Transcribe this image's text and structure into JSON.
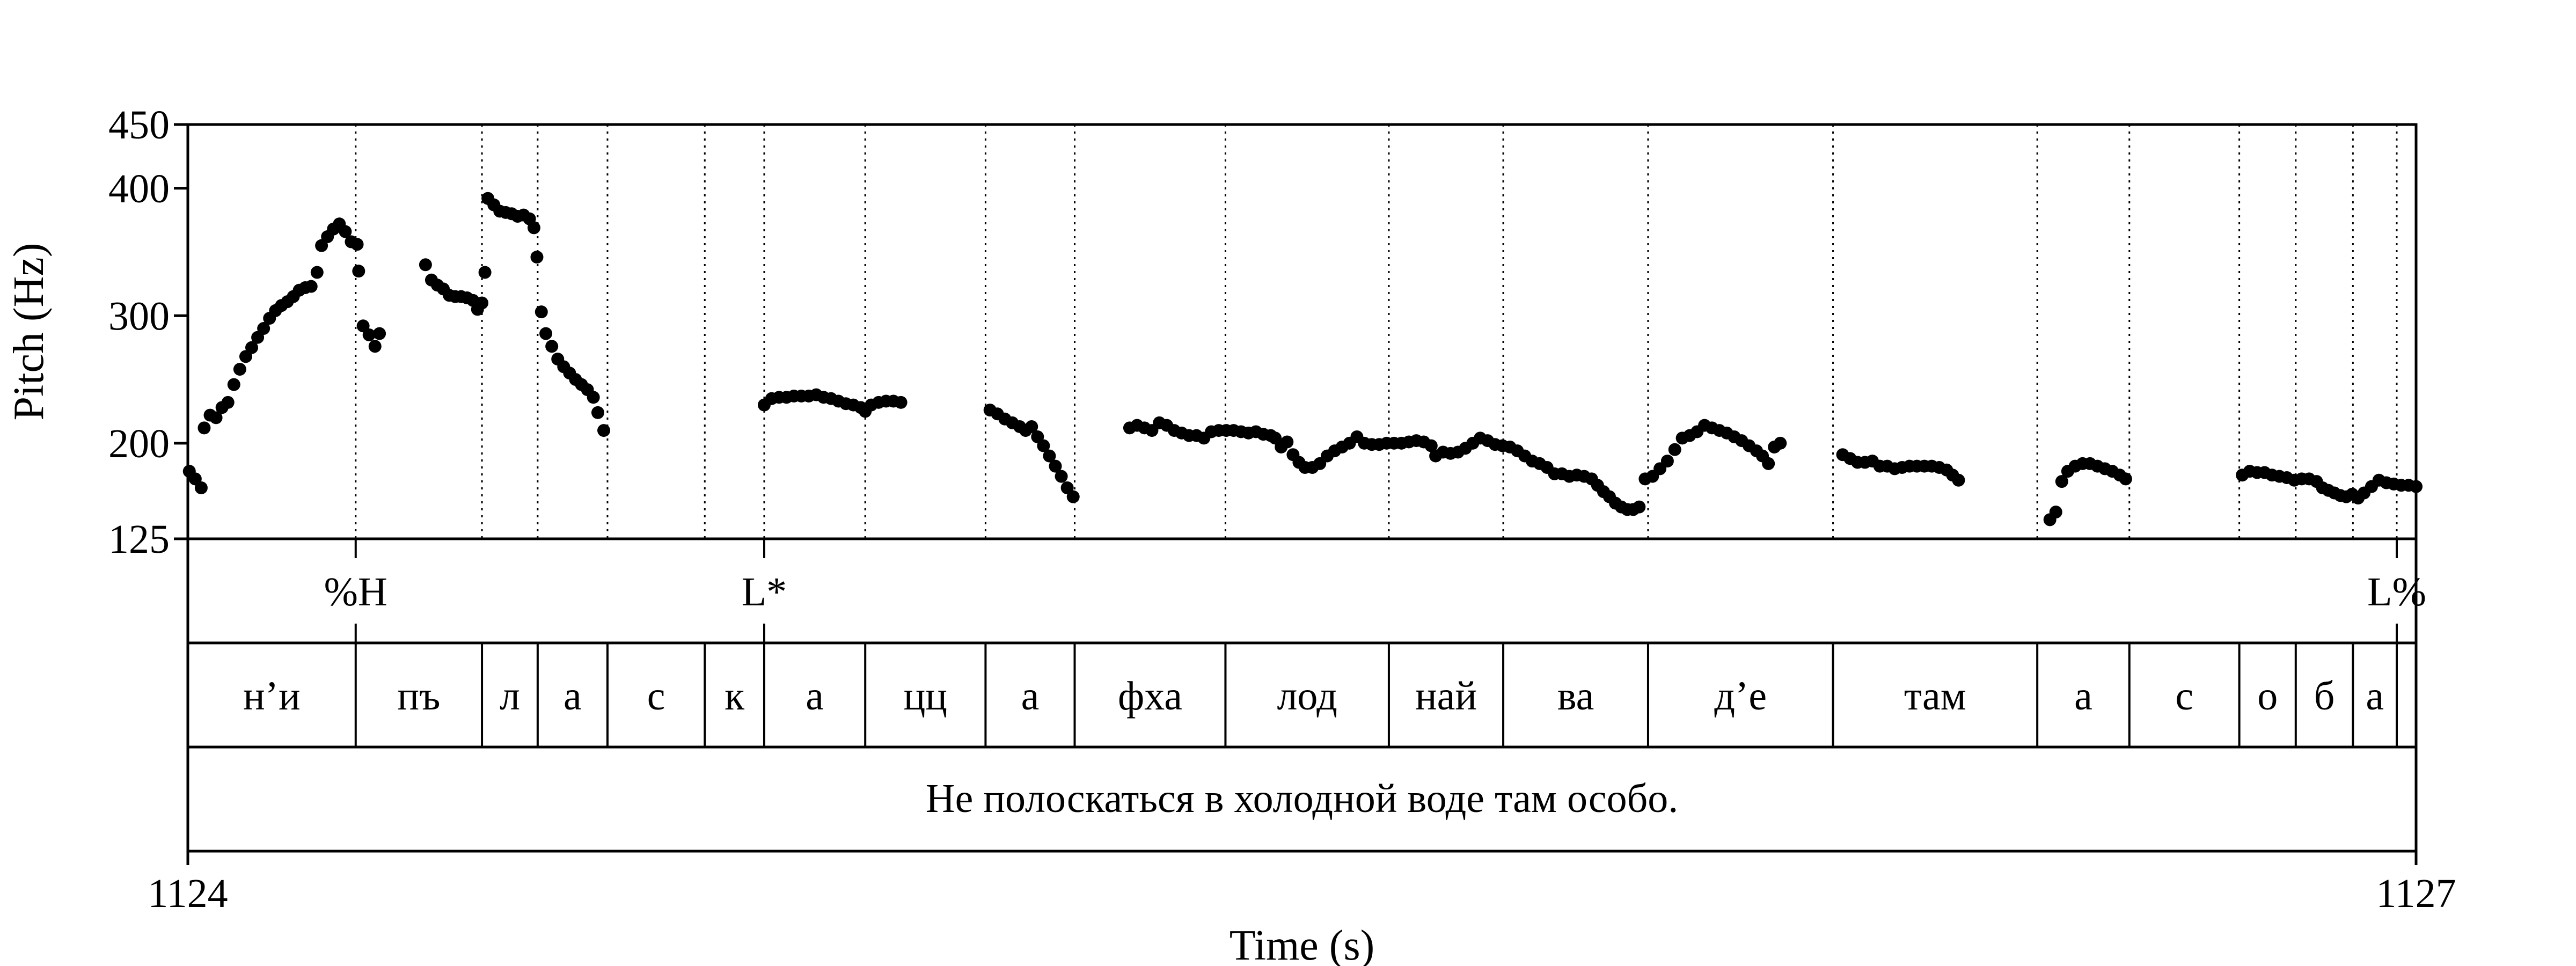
{
  "chart_data": {
    "type": "scatter",
    "title": "",
    "xlabel": "Time (s)",
    "ylabel": "Pitch (Hz)",
    "xlim": [
      1124,
      1127
    ],
    "ylim": [
      125,
      450
    ],
    "xticks": [
      "1124",
      "1127"
    ],
    "yticks": [
      125,
      200,
      300,
      400,
      450
    ],
    "ytick_labels": [
      "125",
      "200",
      "300",
      "400",
      "450"
    ],
    "y_scale": "linear",
    "grid": "vertical dotted lines at interval boundaries",
    "marker_color": "#000000",
    "tones": [
      {
        "label": "%H",
        "time": 1124.226
      },
      {
        "label": "L*",
        "time": 1124.776
      },
      {
        "label": "L%",
        "time": 1126.974
      }
    ],
    "syllable_boundaries": [
      1124,
      1124.226,
      1124.396,
      1124.471,
      1124.565,
      1124.696,
      1124.776,
      1124.912,
      1125.074,
      1125.194,
      1125.397,
      1125.617,
      1125.771,
      1125.966,
      1126.215,
      1126.49,
      1126.614,
      1126.762,
      1126.838,
      1126.915,
      1126.974,
      1127
    ],
    "syllables": [
      "н’и",
      "пъ",
      "л",
      "а",
      "с",
      "к",
      "а",
      "цц",
      "а",
      "фха",
      "лод",
      "най",
      "ва",
      "д’е",
      "там",
      "а",
      "с",
      "о",
      "б",
      "а"
    ],
    "sentence": "Не полоскаться в холодной воде там особо.",
    "series": [
      {
        "points": [
          [
            1124.002,
            178
          ],
          [
            1124.01,
            172
          ],
          [
            1124.018,
            165
          ],
          [
            1124.022,
            212
          ],
          [
            1124.03,
            222
          ],
          [
            1124.038,
            220
          ],
          [
            1124.046,
            228
          ],
          [
            1124.054,
            232
          ],
          [
            1124.062,
            246
          ],
          [
            1124.07,
            258
          ],
          [
            1124.078,
            268
          ],
          [
            1124.086,
            275
          ],
          [
            1124.094,
            283
          ],
          [
            1124.102,
            290
          ],
          [
            1124.11,
            298
          ],
          [
            1124.118,
            304
          ],
          [
            1124.126,
            308
          ],
          [
            1124.134,
            311
          ],
          [
            1124.142,
            315
          ],
          [
            1124.15,
            320
          ],
          [
            1124.158,
            322
          ],
          [
            1124.166,
            323
          ],
          [
            1124.174,
            334
          ],
          [
            1124.18,
            355
          ],
          [
            1124.188,
            362
          ],
          [
            1124.196,
            368
          ],
          [
            1124.204,
            372
          ],
          [
            1124.212,
            366
          ],
          [
            1124.22,
            358
          ],
          [
            1124.228,
            356
          ],
          [
            1124.23,
            335
          ],
          [
            1124.236,
            292
          ],
          [
            1124.244,
            285
          ],
          [
            1124.252,
            276
          ],
          [
            1124.258,
            286
          ],
          [
            1124.32,
            340
          ],
          [
            1124.328,
            328
          ],
          [
            1124.336,
            324
          ],
          [
            1124.344,
            321
          ],
          [
            1124.352,
            316
          ],
          [
            1124.36,
            315
          ],
          [
            1124.368,
            315
          ],
          [
            1124.376,
            314
          ],
          [
            1124.384,
            312
          ],
          [
            1124.39,
            305
          ],
          [
            1124.396,
            310
          ],
          [
            1124.4,
            334
          ],
          [
            1124.404,
            392
          ],
          [
            1124.412,
            387
          ],
          [
            1124.42,
            382
          ],
          [
            1124.428,
            381
          ],
          [
            1124.436,
            380
          ],
          [
            1124.444,
            378
          ],
          [
            1124.452,
            379
          ],
          [
            1124.46,
            376
          ],
          [
            1124.466,
            369
          ],
          [
            1124.47,
            346
          ],
          [
            1124.476,
            303
          ],
          [
            1124.482,
            286
          ],
          [
            1124.49,
            276
          ],
          [
            1124.498,
            266
          ],
          [
            1124.506,
            260
          ],
          [
            1124.514,
            255
          ],
          [
            1124.522,
            250
          ],
          [
            1124.53,
            246
          ],
          [
            1124.538,
            242
          ],
          [
            1124.546,
            236
          ],
          [
            1124.552,
            224
          ],
          [
            1124.56,
            210
          ],
          [
            1124.776,
            230
          ],
          [
            1124.786,
            235
          ],
          [
            1124.796,
            236
          ],
          [
            1124.806,
            236
          ],
          [
            1124.816,
            237
          ],
          [
            1124.826,
            237
          ],
          [
            1124.836,
            237
          ],
          [
            1124.846,
            238
          ],
          [
            1124.856,
            236
          ],
          [
            1124.866,
            235
          ],
          [
            1124.876,
            233
          ],
          [
            1124.886,
            231
          ],
          [
            1124.896,
            230
          ],
          [
            1124.906,
            228
          ],
          [
            1124.912,
            225
          ],
          [
            1124.92,
            230
          ],
          [
            1124.93,
            232
          ],
          [
            1124.94,
            233
          ],
          [
            1124.95,
            233
          ],
          [
            1124.96,
            232
          ],
          [
            1125.08,
            226
          ],
          [
            1125.09,
            223
          ],
          [
            1125.1,
            219
          ],
          [
            1125.11,
            216
          ],
          [
            1125.12,
            213
          ],
          [
            1125.128,
            210
          ],
          [
            1125.136,
            213
          ],
          [
            1125.144,
            205
          ],
          [
            1125.152,
            198
          ],
          [
            1125.16,
            190
          ],
          [
            1125.168,
            182
          ],
          [
            1125.176,
            174
          ],
          [
            1125.184,
            165
          ],
          [
            1125.192,
            158
          ],
          [
            1125.268,
            212
          ],
          [
            1125.278,
            214
          ],
          [
            1125.288,
            212
          ],
          [
            1125.298,
            210
          ],
          [
            1125.308,
            216
          ],
          [
            1125.318,
            214
          ],
          [
            1125.328,
            210
          ],
          [
            1125.338,
            208
          ],
          [
            1125.348,
            206
          ],
          [
            1125.358,
            206
          ],
          [
            1125.368,
            204
          ],
          [
            1125.378,
            209
          ],
          [
            1125.388,
            210
          ],
          [
            1125.398,
            210
          ],
          [
            1125.408,
            210
          ],
          [
            1125.418,
            209
          ],
          [
            1125.428,
            208
          ],
          [
            1125.438,
            209
          ],
          [
            1125.448,
            207
          ],
          [
            1125.458,
            206
          ],
          [
            1125.464,
            204
          ],
          [
            1125.472,
            197
          ],
          [
            1125.48,
            201
          ],
          [
            1125.488,
            191
          ],
          [
            1125.496,
            185
          ],
          [
            1125.504,
            181
          ],
          [
            1125.514,
            181
          ],
          [
            1125.524,
            184
          ],
          [
            1125.534,
            190
          ],
          [
            1125.544,
            194
          ],
          [
            1125.554,
            197
          ],
          [
            1125.564,
            200
          ],
          [
            1125.574,
            205
          ],
          [
            1125.584,
            200
          ],
          [
            1125.594,
            199
          ],
          [
            1125.604,
            199
          ],
          [
            1125.614,
            200
          ],
          [
            1125.624,
            200
          ],
          [
            1125.634,
            200
          ],
          [
            1125.644,
            201
          ],
          [
            1125.654,
            202
          ],
          [
            1125.664,
            201
          ],
          [
            1125.674,
            198
          ],
          [
            1125.68,
            190
          ],
          [
            1125.69,
            193
          ],
          [
            1125.7,
            192
          ],
          [
            1125.71,
            193
          ],
          [
            1125.72,
            196
          ],
          [
            1125.73,
            200
          ],
          [
            1125.74,
            204
          ],
          [
            1125.75,
            202
          ],
          [
            1125.76,
            199
          ],
          [
            1125.77,
            198
          ],
          [
            1125.78,
            197
          ],
          [
            1125.79,
            194
          ],
          [
            1125.8,
            190
          ],
          [
            1125.81,
            186
          ],
          [
            1125.82,
            184
          ],
          [
            1125.83,
            181
          ],
          [
            1125.84,
            176
          ],
          [
            1125.85,
            176
          ],
          [
            1125.86,
            174
          ],
          [
            1125.87,
            175
          ],
          [
            1125.88,
            174
          ],
          [
            1125.89,
            172
          ],
          [
            1125.898,
            167
          ],
          [
            1125.906,
            162
          ],
          [
            1125.914,
            158
          ],
          [
            1125.922,
            153
          ],
          [
            1125.93,
            150
          ],
          [
            1125.938,
            148
          ],
          [
            1125.946,
            148
          ],
          [
            1125.954,
            150
          ],
          [
            1125.962,
            172
          ],
          [
            1125.972,
            174
          ],
          [
            1125.982,
            180
          ],
          [
            1125.992,
            186
          ],
          [
            1126.002,
            195
          ],
          [
            1126.012,
            204
          ],
          [
            1126.022,
            206
          ],
          [
            1126.032,
            209
          ],
          [
            1126.042,
            214
          ],
          [
            1126.052,
            212
          ],
          [
            1126.062,
            210
          ],
          [
            1126.072,
            208
          ],
          [
            1126.082,
            205
          ],
          [
            1126.092,
            202
          ],
          [
            1126.102,
            198
          ],
          [
            1126.112,
            194
          ],
          [
            1126.12,
            190
          ],
          [
            1126.128,
            184
          ],
          [
            1126.136,
            197
          ],
          [
            1126.144,
            200
          ],
          [
            1126.228,
            191
          ],
          [
            1126.238,
            188
          ],
          [
            1126.248,
            185
          ],
          [
            1126.258,
            185
          ],
          [
            1126.268,
            186
          ],
          [
            1126.278,
            182
          ],
          [
            1126.288,
            182
          ],
          [
            1126.298,
            180
          ],
          [
            1126.308,
            181
          ],
          [
            1126.318,
            182
          ],
          [
            1126.328,
            182
          ],
          [
            1126.338,
            182
          ],
          [
            1126.348,
            182
          ],
          [
            1126.358,
            181
          ],
          [
            1126.368,
            179
          ],
          [
            1126.376,
            175
          ],
          [
            1126.384,
            171
          ],
          [
            1126.507,
            140
          ],
          [
            1126.515,
            146
          ],
          [
            1126.523,
            170
          ],
          [
            1126.531,
            178
          ],
          [
            1126.541,
            182
          ],
          [
            1126.551,
            184
          ],
          [
            1126.561,
            184
          ],
          [
            1126.571,
            182
          ],
          [
            1126.581,
            180
          ],
          [
            1126.591,
            178
          ],
          [
            1126.601,
            175
          ],
          [
            1126.609,
            172
          ],
          [
            1126.766,
            175
          ],
          [
            1126.776,
            178
          ],
          [
            1126.786,
            177
          ],
          [
            1126.796,
            177
          ],
          [
            1126.806,
            175
          ],
          [
            1126.816,
            174
          ],
          [
            1126.826,
            173
          ],
          [
            1126.836,
            171
          ],
          [
            1126.846,
            172
          ],
          [
            1126.856,
            172
          ],
          [
            1126.866,
            170
          ],
          [
            1126.874,
            165
          ],
          [
            1126.882,
            163
          ],
          [
            1126.89,
            161
          ],
          [
            1126.898,
            159
          ],
          [
            1126.906,
            158
          ],
          [
            1126.914,
            160
          ],
          [
            1126.922,
            157
          ],
          [
            1126.93,
            161
          ],
          [
            1126.94,
            166
          ],
          [
            1126.95,
            171
          ],
          [
            1126.96,
            169
          ],
          [
            1126.97,
            168
          ],
          [
            1126.98,
            167
          ],
          [
            1126.99,
            167
          ],
          [
            1127.0,
            166
          ]
        ]
      }
    ]
  }
}
